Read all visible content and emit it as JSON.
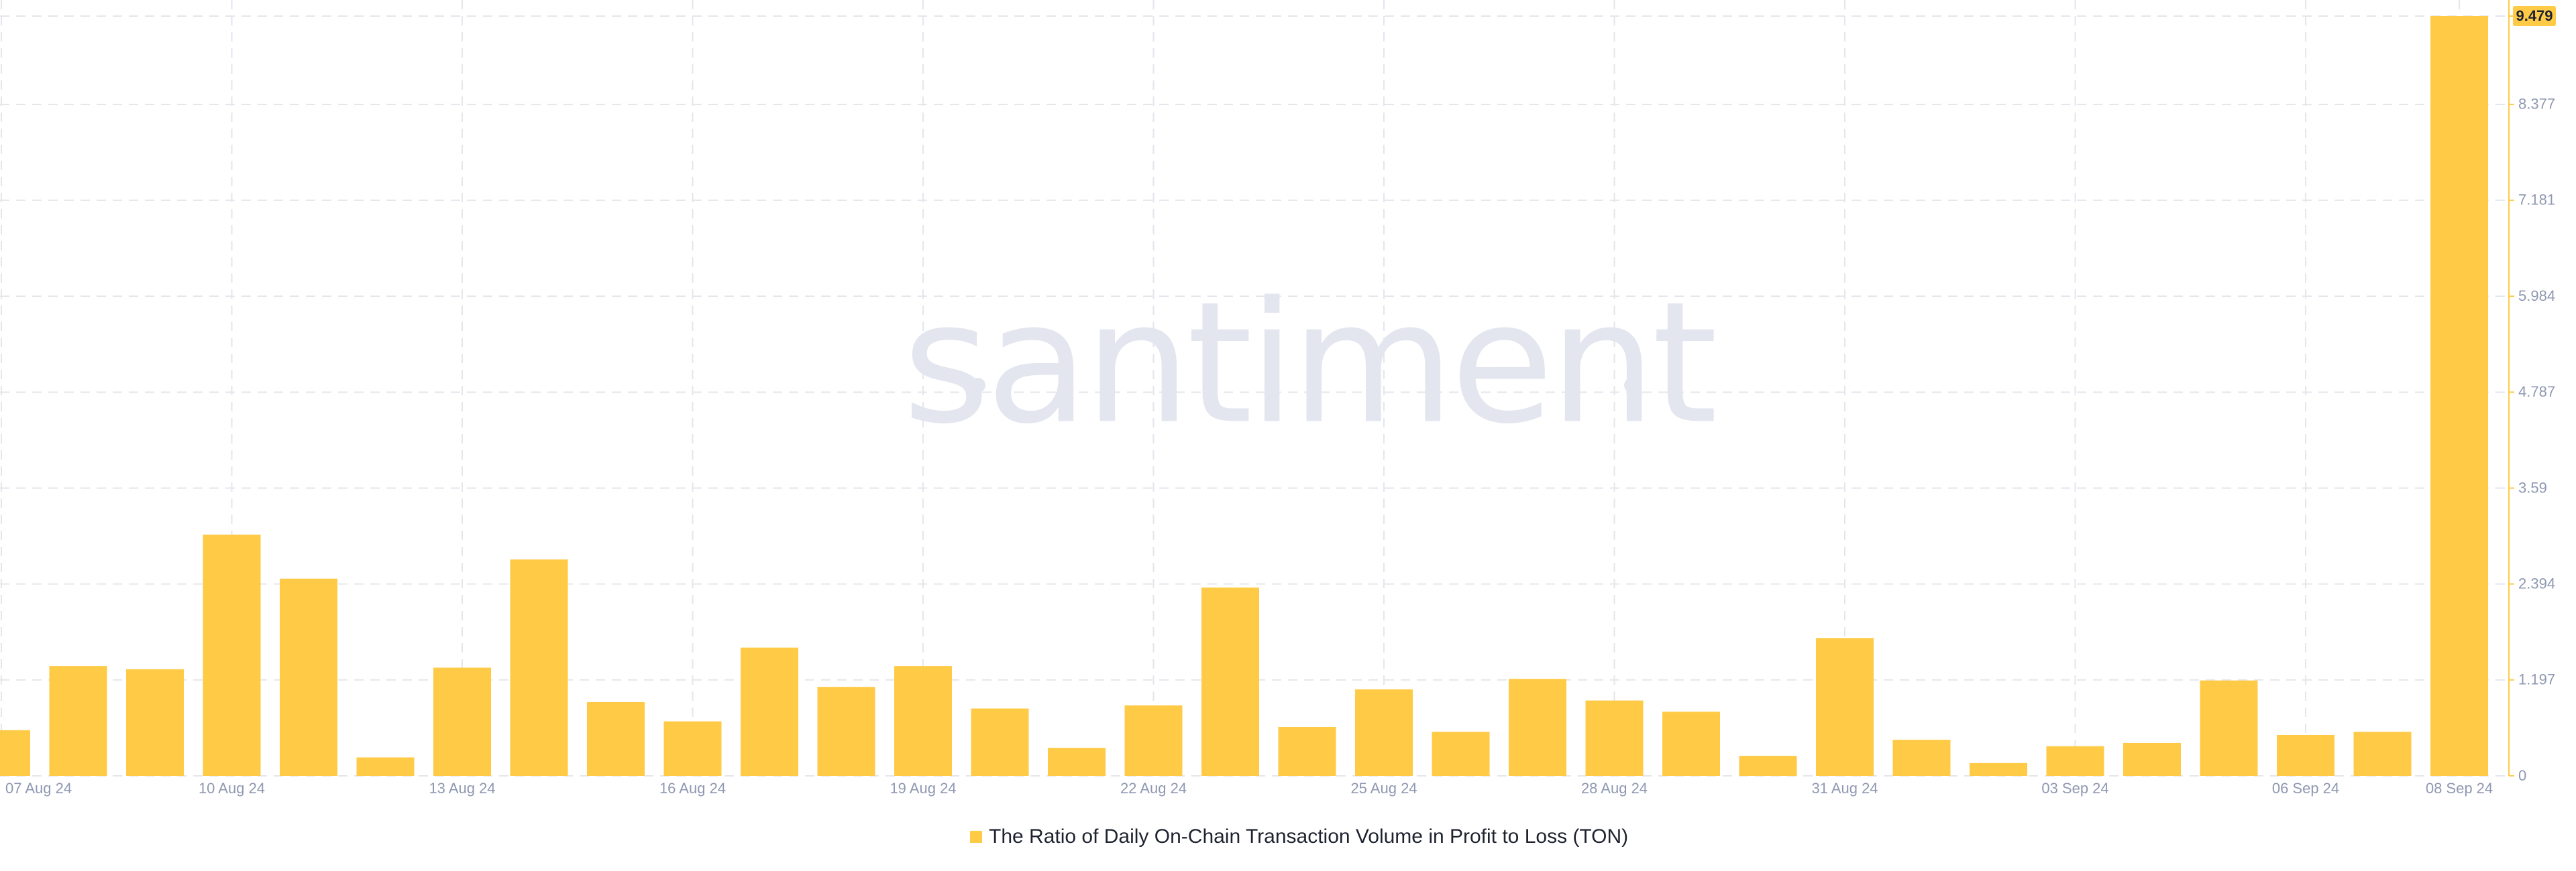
{
  "chart_data": {
    "type": "bar",
    "watermark": "santiment",
    "legend_label": "The Ratio of Daily On-Chain Transaction Volume in Profit to Loss (TON)",
    "color": "#ffcb47",
    "grid": true,
    "categories": [
      "07 Aug 24",
      null,
      null,
      "10 Aug 24",
      null,
      null,
      "13 Aug 24",
      null,
      null,
      "16 Aug 24",
      null,
      null,
      "19 Aug 24",
      null,
      null,
      "22 Aug 24",
      null,
      null,
      "25 Aug 24",
      null,
      null,
      "28 Aug 24",
      null,
      null,
      "31 Aug 24",
      null,
      null,
      "03 Sep 24",
      null,
      null,
      "06 Sep 24",
      null,
      "08 Sep 24"
    ],
    "values": [
      0.57,
      1.37,
      1.33,
      3.01,
      2.46,
      0.23,
      1.35,
      2.7,
      0.92,
      0.68,
      1.6,
      1.11,
      1.37,
      0.84,
      0.35,
      0.88,
      2.35,
      0.61,
      1.08,
      0.55,
      1.21,
      0.94,
      0.8,
      0.25,
      1.72,
      0.45,
      0.16,
      0.37,
      0.41,
      1.19,
      0.51,
      0.55,
      9.479
    ],
    "ylim": [
      0,
      9.479
    ],
    "yticks": [
      0,
      1.197,
      2.394,
      3.59,
      4.787,
      5.984,
      7.181,
      8.377,
      9.479
    ]
  }
}
